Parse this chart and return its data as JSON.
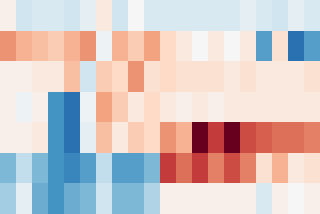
{
  "matrix": [
    [
      0.05,
      -0.2,
      -0.15,
      -0.15,
      -0.2,
      -0.1,
      0.1,
      -0.2,
      0.0,
      -0.15,
      -0.15,
      -0.15,
      -0.15,
      -0.15,
      -0.15,
      -0.1,
      -0.15,
      -0.2,
      -0.1,
      -0.15
    ],
    [
      0.45,
      0.35,
      0.3,
      0.25,
      0.35,
      0.45,
      -0.05,
      0.35,
      0.25,
      0.4,
      0.2,
      0.1,
      0.0,
      0.1,
      0.0,
      0.1,
      -0.55,
      0.15,
      -0.75,
      -0.55
    ],
    [
      0.05,
      0.05,
      0.1,
      0.1,
      0.3,
      -0.2,
      0.25,
      0.2,
      0.45,
      0.15,
      0.2,
      0.15,
      0.15,
      0.15,
      0.1,
      0.15,
      0.1,
      0.1,
      0.1,
      0.15
    ],
    [
      0.05,
      -0.05,
      0.05,
      -0.6,
      -0.75,
      -0.05,
      0.4,
      0.25,
      0.1,
      0.2,
      0.1,
      0.05,
      0.1,
      0.05,
      0.1,
      0.1,
      0.1,
      0.1,
      0.1,
      0.1
    ],
    [
      0.05,
      0.05,
      0.1,
      -0.6,
      -0.75,
      -0.1,
      0.3,
      0.1,
      0.25,
      0.2,
      0.45,
      0.35,
      1.0,
      0.7,
      1.0,
      0.65,
      0.6,
      0.55,
      0.55,
      0.5
    ],
    [
      -0.45,
      -0.25,
      -0.45,
      -0.6,
      -0.65,
      -0.55,
      -0.25,
      -0.55,
      -0.55,
      -0.45,
      0.7,
      0.55,
      0.7,
      0.5,
      0.65,
      0.5,
      0.15,
      0.35,
      0.1,
      0.15
    ],
    [
      -0.35,
      -0.1,
      -0.5,
      -0.6,
      -0.5,
      -0.45,
      -0.2,
      -0.45,
      -0.45,
      -0.3,
      0.05,
      0.05,
      0.05,
      0.05,
      0.05,
      0.05,
      -0.15,
      0.05,
      0.0,
      0.05
    ]
  ],
  "cmap": "RdBu_r",
  "vmin": -1.0,
  "vmax": 1.0,
  "background": "#000000",
  "figsize": [
    3.2,
    2.14
  ],
  "dpi": 100
}
